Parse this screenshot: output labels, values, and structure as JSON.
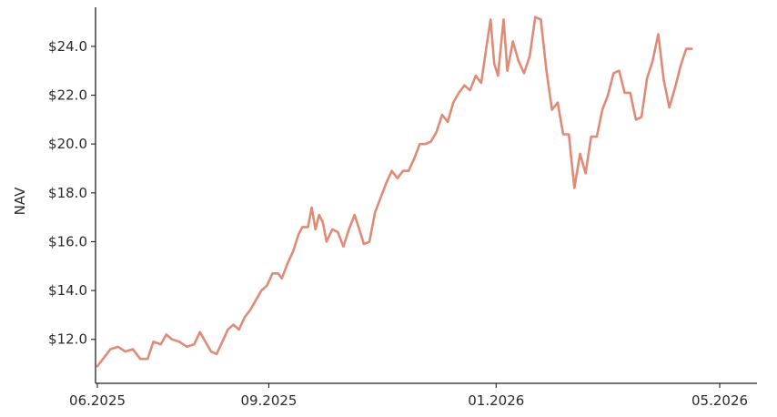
{
  "chart_data": {
    "type": "line",
    "title": "",
    "xlabel": "",
    "ylabel": "NAV",
    "grid": false,
    "line_color": "#E08B78",
    "xlim": [
      "2025-05-31",
      "2026-05-21"
    ],
    "ylim": [
      10.2,
      25.6
    ],
    "y_ticks": [
      12.0,
      14.0,
      16.0,
      18.0,
      20.0,
      22.0,
      24.0
    ],
    "y_tick_labels": [
      "$12.0",
      "$14.0",
      "$16.0",
      "$18.0",
      "$20.0",
      "$22.0",
      "$24.0"
    ],
    "x_ticks": [
      "2025-06-01",
      "2025-09-01",
      "2026-01-01",
      "2026-05-01"
    ],
    "x_tick_labels": [
      "06.2025",
      "09.2025",
      "01.2026",
      "05.2026"
    ],
    "series": [
      {
        "points": [
          [
            "2025-06-01",
            10.9
          ],
          [
            "2025-06-04",
            11.2
          ],
          [
            "2025-06-08",
            11.6
          ],
          [
            "2025-06-12",
            11.7
          ],
          [
            "2025-06-16",
            11.5
          ],
          [
            "2025-06-20",
            11.6
          ],
          [
            "2025-06-24",
            11.2
          ],
          [
            "2025-06-28",
            11.2
          ],
          [
            "2025-07-01",
            11.9
          ],
          [
            "2025-07-05",
            11.8
          ],
          [
            "2025-07-08",
            12.2
          ],
          [
            "2025-07-11",
            12.0
          ],
          [
            "2025-07-15",
            11.9
          ],
          [
            "2025-07-19",
            11.7
          ],
          [
            "2025-07-23",
            11.8
          ],
          [
            "2025-07-26",
            12.3
          ],
          [
            "2025-07-29",
            11.9
          ],
          [
            "2025-08-01",
            11.5
          ],
          [
            "2025-08-04",
            11.4
          ],
          [
            "2025-08-07",
            11.9
          ],
          [
            "2025-08-10",
            12.4
          ],
          [
            "2025-08-13",
            12.6
          ],
          [
            "2025-08-16",
            12.4
          ],
          [
            "2025-08-19",
            12.9
          ],
          [
            "2025-08-22",
            13.2
          ],
          [
            "2025-08-25",
            13.6
          ],
          [
            "2025-08-28",
            14.0
          ],
          [
            "2025-08-31",
            14.2
          ],
          [
            "2025-09-03",
            14.7
          ],
          [
            "2025-09-06",
            14.7
          ],
          [
            "2025-09-08",
            14.5
          ],
          [
            "2025-09-11",
            15.1
          ],
          [
            "2025-09-14",
            15.6
          ],
          [
            "2025-09-17",
            16.3
          ],
          [
            "2025-09-19",
            16.6
          ],
          [
            "2025-09-22",
            16.6
          ],
          [
            "2025-09-24",
            17.4
          ],
          [
            "2025-09-26",
            16.5
          ],
          [
            "2025-09-28",
            17.1
          ],
          [
            "2025-09-30",
            16.8
          ],
          [
            "2025-10-02",
            16.0
          ],
          [
            "2025-10-05",
            16.5
          ],
          [
            "2025-10-08",
            16.4
          ],
          [
            "2025-10-11",
            15.8
          ],
          [
            "2025-10-14",
            16.5
          ],
          [
            "2025-10-17",
            17.1
          ],
          [
            "2025-10-20",
            16.4
          ],
          [
            "2025-10-22",
            15.9
          ],
          [
            "2025-10-25",
            16.0
          ],
          [
            "2025-10-28",
            17.2
          ],
          [
            "2025-10-31",
            17.8
          ],
          [
            "2025-11-03",
            18.4
          ],
          [
            "2025-11-06",
            18.9
          ],
          [
            "2025-11-09",
            18.6
          ],
          [
            "2025-11-12",
            18.9
          ],
          [
            "2025-11-15",
            18.9
          ],
          [
            "2025-11-18",
            19.4
          ],
          [
            "2025-11-21",
            20.0
          ],
          [
            "2025-11-24",
            20.0
          ],
          [
            "2025-11-27",
            20.1
          ],
          [
            "2025-11-30",
            20.5
          ],
          [
            "2025-12-03",
            21.2
          ],
          [
            "2025-12-06",
            20.9
          ],
          [
            "2025-12-09",
            21.7
          ],
          [
            "2025-12-12",
            22.1
          ],
          [
            "2025-12-15",
            22.4
          ],
          [
            "2025-12-18",
            22.2
          ],
          [
            "2025-12-21",
            22.8
          ],
          [
            "2025-12-24",
            22.5
          ],
          [
            "2025-12-27",
            24.1
          ],
          [
            "2025-12-29",
            25.1
          ],
          [
            "2025-12-31",
            23.3
          ],
          [
            "2026-01-02",
            22.8
          ],
          [
            "2026-01-05",
            25.1
          ],
          [
            "2026-01-07",
            23.0
          ],
          [
            "2026-01-10",
            24.2
          ],
          [
            "2026-01-13",
            23.4
          ],
          [
            "2026-01-16",
            22.9
          ],
          [
            "2026-01-19",
            23.6
          ],
          [
            "2026-01-22",
            25.2
          ],
          [
            "2026-01-25",
            25.1
          ],
          [
            "2026-01-28",
            23.0
          ],
          [
            "2026-01-31",
            21.4
          ],
          [
            "2026-02-03",
            21.7
          ],
          [
            "2026-02-06",
            20.4
          ],
          [
            "2026-02-09",
            20.4
          ],
          [
            "2026-02-12",
            18.2
          ],
          [
            "2026-02-15",
            19.6
          ],
          [
            "2026-02-18",
            18.8
          ],
          [
            "2026-02-21",
            20.3
          ],
          [
            "2026-02-24",
            20.3
          ],
          [
            "2026-02-27",
            21.4
          ],
          [
            "2026-03-02",
            22.0
          ],
          [
            "2026-03-05",
            22.9
          ],
          [
            "2026-03-08",
            23.0
          ],
          [
            "2026-03-11",
            22.1
          ],
          [
            "2026-03-14",
            22.1
          ],
          [
            "2026-03-17",
            21.0
          ],
          [
            "2026-03-20",
            21.1
          ],
          [
            "2026-03-23",
            22.7
          ],
          [
            "2026-03-26",
            23.4
          ],
          [
            "2026-03-29",
            24.5
          ],
          [
            "2026-04-01",
            22.6
          ],
          [
            "2026-04-04",
            21.5
          ],
          [
            "2026-04-07",
            22.3
          ],
          [
            "2026-04-10",
            23.2
          ],
          [
            "2026-04-13",
            23.9
          ],
          [
            "2026-04-16",
            23.9
          ]
        ]
      }
    ]
  }
}
